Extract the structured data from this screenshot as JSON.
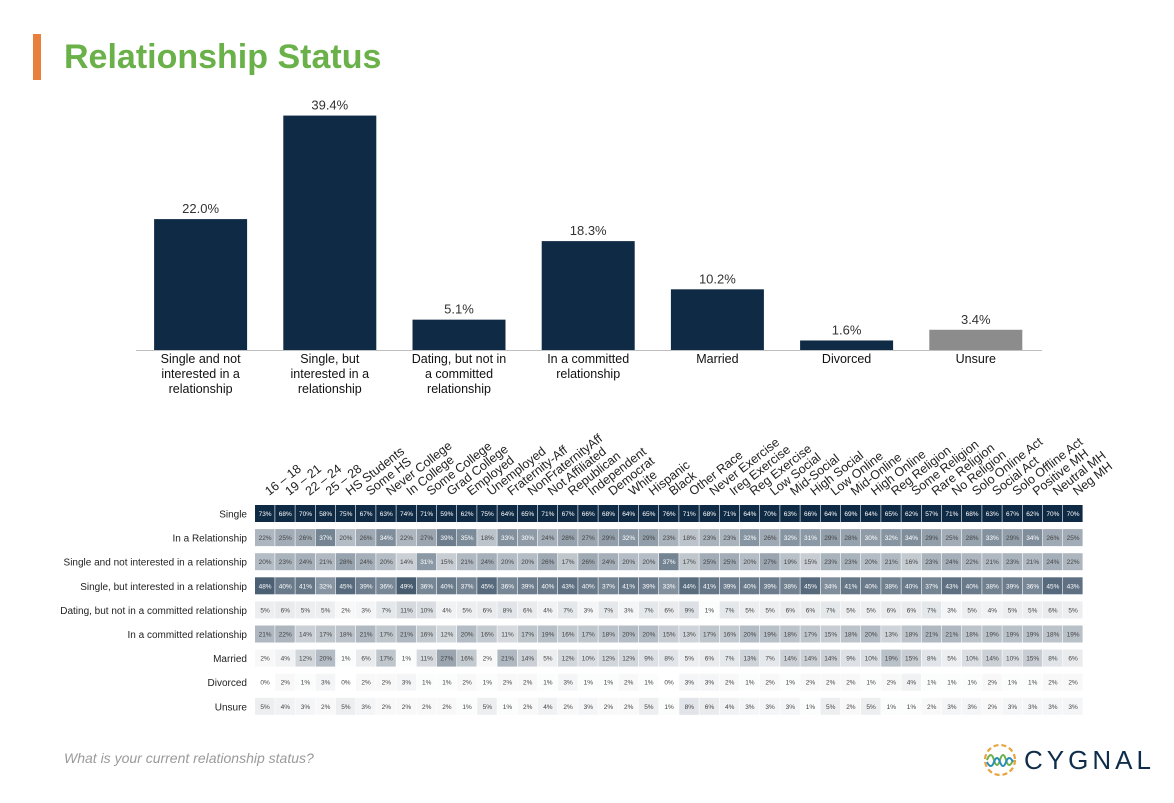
{
  "slide": {
    "title": "Relationship Status",
    "question": "What is your current relationship status?",
    "brand": "CYGNAL"
  },
  "colors": {
    "accent": "#e87f3c",
    "title": "#6ab14a",
    "bar": "#0f2a44",
    "bar_unsure": "#8c8c8c",
    "heat_low": "#ffffff",
    "heat_high": "#0f2a44"
  },
  "chart_data": [
    {
      "type": "bar",
      "categories": [
        "Single and not interested in a relationship",
        "Single, but interested in a relationship",
        "Dating, but not in a committed relationship",
        "In a committed relationship",
        "Married",
        "Divorced",
        "Unsure"
      ],
      "values": [
        22.0,
        39.4,
        5.1,
        18.3,
        10.2,
        1.6,
        3.4
      ],
      "labels": [
        "22.0%",
        "39.4%",
        "5.1%",
        "18.3%",
        "10.2%",
        "1.6%",
        "3.4%"
      ],
      "ylim": [
        0,
        40
      ]
    },
    {
      "type": "heatmap",
      "columns": [
        "16 – 18",
        "19 – 21",
        "22 – 24",
        "25 – 28",
        "HS Students",
        "Some HS",
        "Never College",
        "In College",
        "Some College",
        "Grad College",
        "Employed",
        "Unemployed",
        "Fraternity-Aff",
        "NonFraternityAff",
        "Not Affiliated",
        "Republican",
        "Independent",
        "Democrat",
        "White",
        "Hispanic",
        "Black",
        "Other Race",
        "Never Exercise",
        "Ireg Exercise",
        "Reg Exercise",
        "Low Social",
        "Mid-Social",
        "High Social",
        "Low Online",
        "Mid-Online",
        "High Online",
        "Reg Religion",
        "Some Religion",
        "Rare Religion",
        "No Religion",
        "Solo Online Act",
        "Social Act",
        "Solo Offline Act",
        "Positive MH",
        "Neutral MH",
        "Neg MH"
      ],
      "rows": [
        {
          "label": "Single",
          "values": [
            73,
            68,
            70,
            58,
            75,
            67,
            63,
            74,
            71,
            59,
            62,
            75,
            64,
            65,
            71,
            67,
            66,
            68,
            64,
            65,
            76,
            71,
            68,
            71,
            64,
            70,
            63,
            66,
            64,
            69,
            64,
            65,
            62,
            57,
            71,
            68,
            63,
            67,
            62,
            70,
            70
          ]
        },
        {
          "label": "In a Relationship",
          "values": [
            22,
            25,
            26,
            37,
            20,
            26,
            34,
            22,
            27,
            39,
            35,
            18,
            33,
            30,
            24,
            28,
            27,
            29,
            32,
            29,
            23,
            18,
            23,
            23,
            32,
            26,
            32,
            31,
            29,
            28,
            30,
            32,
            34,
            29,
            25,
            28,
            33,
            29,
            34,
            26,
            25
          ]
        },
        {
          "label": "Single and not interested in a relationship",
          "values": [
            20,
            23,
            24,
            21,
            28,
            24,
            20,
            14,
            31,
            15,
            21,
            24,
            20,
            20,
            26,
            17,
            26,
            24,
            20,
            20,
            37,
            17,
            25,
            25,
            20,
            27,
            19,
            15,
            23,
            23,
            20,
            21,
            16,
            23,
            24,
            22,
            21,
            23,
            21,
            24,
            22
          ]
        },
        {
          "label": "Single, but interested in a relationship",
          "values": [
            48,
            40,
            41,
            32,
            45,
            39,
            36,
            49,
            36,
            40,
            37,
            45,
            36,
            39,
            40,
            43,
            40,
            37,
            41,
            39,
            33,
            44,
            41,
            39,
            40,
            39,
            38,
            45,
            34,
            41,
            40,
            38,
            40,
            37,
            43,
            40,
            38,
            39,
            36,
            45,
            43
          ]
        },
        {
          "label": "Dating, but not in a committed relationship",
          "values": [
            5,
            6,
            5,
            5,
            2,
            3,
            7,
            11,
            10,
            4,
            5,
            6,
            8,
            6,
            4,
            7,
            3,
            7,
            3,
            7,
            6,
            9,
            1,
            7,
            5,
            5,
            6,
            6,
            7,
            5,
            5,
            6,
            6,
            7,
            3,
            5,
            4,
            5,
            5,
            6,
            5
          ]
        },
        {
          "label": "In a committed relationship",
          "values": [
            21,
            22,
            14,
            17,
            18,
            21,
            17,
            21,
            16,
            12,
            20,
            16,
            11,
            17,
            19,
            16,
            17,
            18,
            20,
            20,
            15,
            13,
            17,
            16,
            20,
            19,
            18,
            17,
            15,
            18,
            20,
            13,
            18,
            21,
            21,
            18,
            19,
            19,
            19,
            18,
            19
          ]
        },
        {
          "label": "Married",
          "values": [
            2,
            4,
            12,
            20,
            1,
            6,
            17,
            1,
            11,
            27,
            16,
            2,
            21,
            14,
            5,
            12,
            10,
            12,
            12,
            9,
            8,
            5,
            6,
            7,
            13,
            7,
            14,
            14,
            14,
            9,
            10,
            19,
            15,
            8,
            5,
            10,
            14,
            10,
            15,
            8,
            6
          ]
        },
        {
          "label": "Divorced",
          "values": [
            0,
            2,
            1,
            3,
            0,
            2,
            2,
            3,
            1,
            1,
            2,
            1,
            2,
            2,
            1,
            3,
            1,
            1,
            2,
            1,
            0,
            3,
            3,
            2,
            1,
            2,
            1,
            2,
            2,
            2,
            1,
            2,
            4,
            1,
            1,
            1,
            2,
            1,
            1,
            2,
            2
          ]
        },
        {
          "label": "Unsure",
          "values": [
            5,
            4,
            3,
            2,
            5,
            3,
            2,
            2,
            2,
            2,
            1,
            5,
            1,
            2,
            4,
            2,
            3,
            2,
            2,
            5,
            1,
            8,
            6,
            4,
            3,
            3,
            3,
            1,
            5,
            2,
            5,
            1,
            1,
            2,
            3,
            3,
            2,
            3,
            3,
            3,
            3
          ]
        }
      ]
    }
  ]
}
